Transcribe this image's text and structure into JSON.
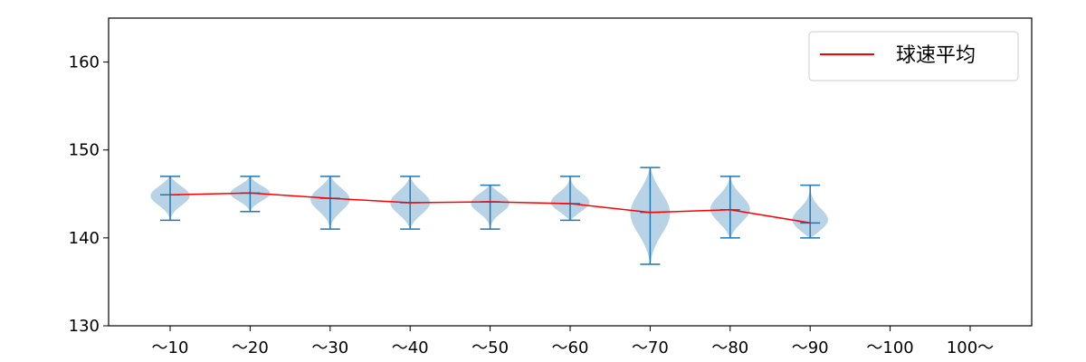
{
  "chart_data": {
    "type": "violin",
    "categories": [
      "〜10",
      "〜20",
      "〜30",
      "〜40",
      "〜50",
      "〜60",
      "〜70",
      "〜80",
      "〜90",
      "〜100",
      "100〜"
    ],
    "violins": [
      {
        "category": "〜10",
        "min": 142,
        "max": 147,
        "mean": 144.9
      },
      {
        "category": "〜20",
        "min": 143,
        "max": 147,
        "mean": 145.1
      },
      {
        "category": "〜30",
        "min": 141,
        "max": 147,
        "mean": 144.5
      },
      {
        "category": "〜40",
        "min": 141,
        "max": 147,
        "mean": 144.0
      },
      {
        "category": "〜50",
        "min": 141,
        "max": 146,
        "mean": 144.1
      },
      {
        "category": "〜60",
        "min": 142,
        "max": 147,
        "mean": 143.9
      },
      {
        "category": "〜70",
        "min": 137,
        "max": 148,
        "mean": 142.9
      },
      {
        "category": "〜80",
        "min": 140,
        "max": 147,
        "mean": 143.2
      },
      {
        "category": "〜90",
        "min": 140,
        "max": 146,
        "mean": 141.7
      }
    ],
    "series": [
      {
        "name": "球速平均",
        "color": "#ff0000",
        "values": [
          144.9,
          145.1,
          144.5,
          144.0,
          144.1,
          143.9,
          142.9,
          143.2,
          141.7,
          null,
          null
        ]
      }
    ],
    "yticks": [
      130,
      140,
      150,
      160
    ],
    "ylim": [
      130,
      165
    ],
    "grid": false,
    "legend_position": "top-right",
    "colors": {
      "violin_fill": "#a6c8e0",
      "violin_line": "#1f77b4",
      "mean_line": "#ff0000"
    }
  }
}
